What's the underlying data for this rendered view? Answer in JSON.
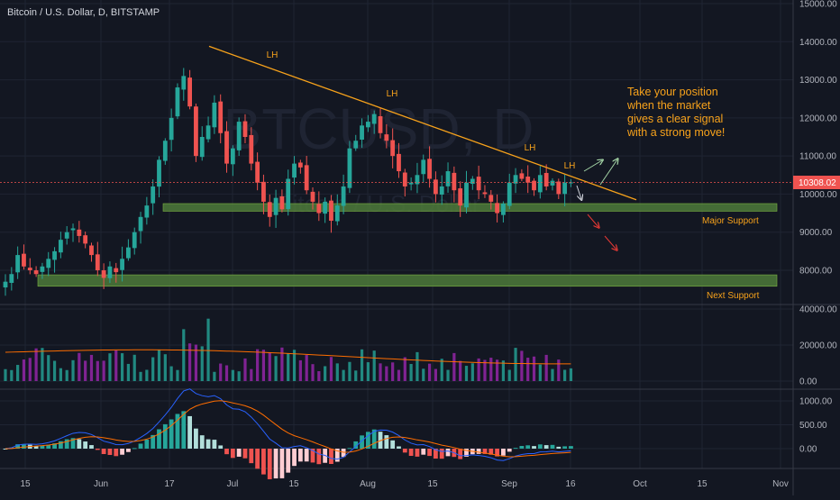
{
  "header": {
    "symbol_title": "Bitcoin / U.S. Dollar, D, BITSTAMP",
    "watermark_symbol": "BTCUSD, D",
    "watermark_name": "Bitcoin / U.S. Dollar"
  },
  "colors": {
    "background": "#131722",
    "grid": "#1f2433",
    "up": "#26a69a",
    "down": "#ef5350",
    "volume_up": "#26a69a",
    "volume_down": "#9c27b0",
    "trendline": "#f7a21b",
    "support_zone": "#4d7a3a",
    "annotation_text": "#f7a21b",
    "last_price_tag": "#ef5350",
    "macd_line": "#2962ff",
    "signal_line": "#ff6d00"
  },
  "annotations": {
    "lh_labels": [
      "LH",
      "LH",
      "LH",
      "LH"
    ],
    "note_lines": [
      "Take your position",
      "when the market",
      "gives a clear signal",
      "with a strong move!"
    ],
    "major_support": "Major Support",
    "next_support": "Next Support",
    "last_price": "10308.02"
  },
  "chart_data": [
    {
      "type": "candlestick",
      "title": "Bitcoin / U.S. Dollar, D, BITSTAMP",
      "x_ticks": [
        "15",
        "Jun",
        "17",
        "Jul",
        "15",
        "Aug",
        "15",
        "Sep",
        "16",
        "Oct",
        "15",
        "Nov"
      ],
      "y_ticks": [
        "8000.00",
        "9000.00",
        "10000.00",
        "11000.00",
        "12000.00",
        "13000.00",
        "14000.00",
        "15000.00"
      ],
      "ylim": [
        7200,
        15100
      ],
      "price_path": [
        7700,
        7900,
        8400,
        8100,
        8000,
        7900,
        8100,
        8300,
        8500,
        8800,
        9000,
        9100,
        8900,
        8700,
        8400,
        8000,
        7800,
        8100,
        7950,
        8300,
        8600,
        9000,
        9400,
        9700,
        10200,
        10900,
        11400,
        12000,
        12800,
        13100,
        12300,
        11000,
        11500,
        11800,
        12400,
        11600,
        10800,
        11200,
        11900,
        11500,
        10800,
        10300,
        9800,
        9400,
        9900,
        9600,
        10400,
        10800,
        10700,
        10100,
        9800,
        9500,
        9800,
        9300,
        9700,
        10200,
        11200,
        11400,
        11800,
        11900,
        12100,
        11600,
        11400,
        11000,
        10600,
        10200,
        10300,
        10500,
        10900,
        10400,
        10000,
        10200,
        10600,
        10100,
        9700,
        10300,
        10400,
        10100,
        10000,
        9800,
        9500,
        9750,
        10300,
        10500,
        10400,
        10300,
        10100,
        10500,
        10200,
        10350,
        10000,
        10300,
        10308
      ],
      "trendline": {
        "from": [
          "Jun 26",
          13880
        ],
        "to": [
          "Sep 29",
          9850
        ]
      },
      "support_zones": [
        {
          "name": "Major Support",
          "low": 9550,
          "high": 9750
        },
        {
          "name": "Next Support",
          "low": 7580,
          "high": 7880
        }
      ],
      "last_price": 10308.02
    },
    {
      "type": "bar",
      "series": [
        {
          "name": "Volume"
        }
      ],
      "y_ticks": [
        "0.00",
        "20000.00",
        "40000.00"
      ],
      "ylim": [
        0,
        42000
      ]
    },
    {
      "type": "histogram",
      "series": [
        {
          "name": "MACD"
        },
        {
          "name": "Signal"
        }
      ],
      "y_ticks": [
        "0.00",
        "500.00",
        "1000.00"
      ],
      "ylim": [
        -500,
        1100
      ]
    }
  ]
}
